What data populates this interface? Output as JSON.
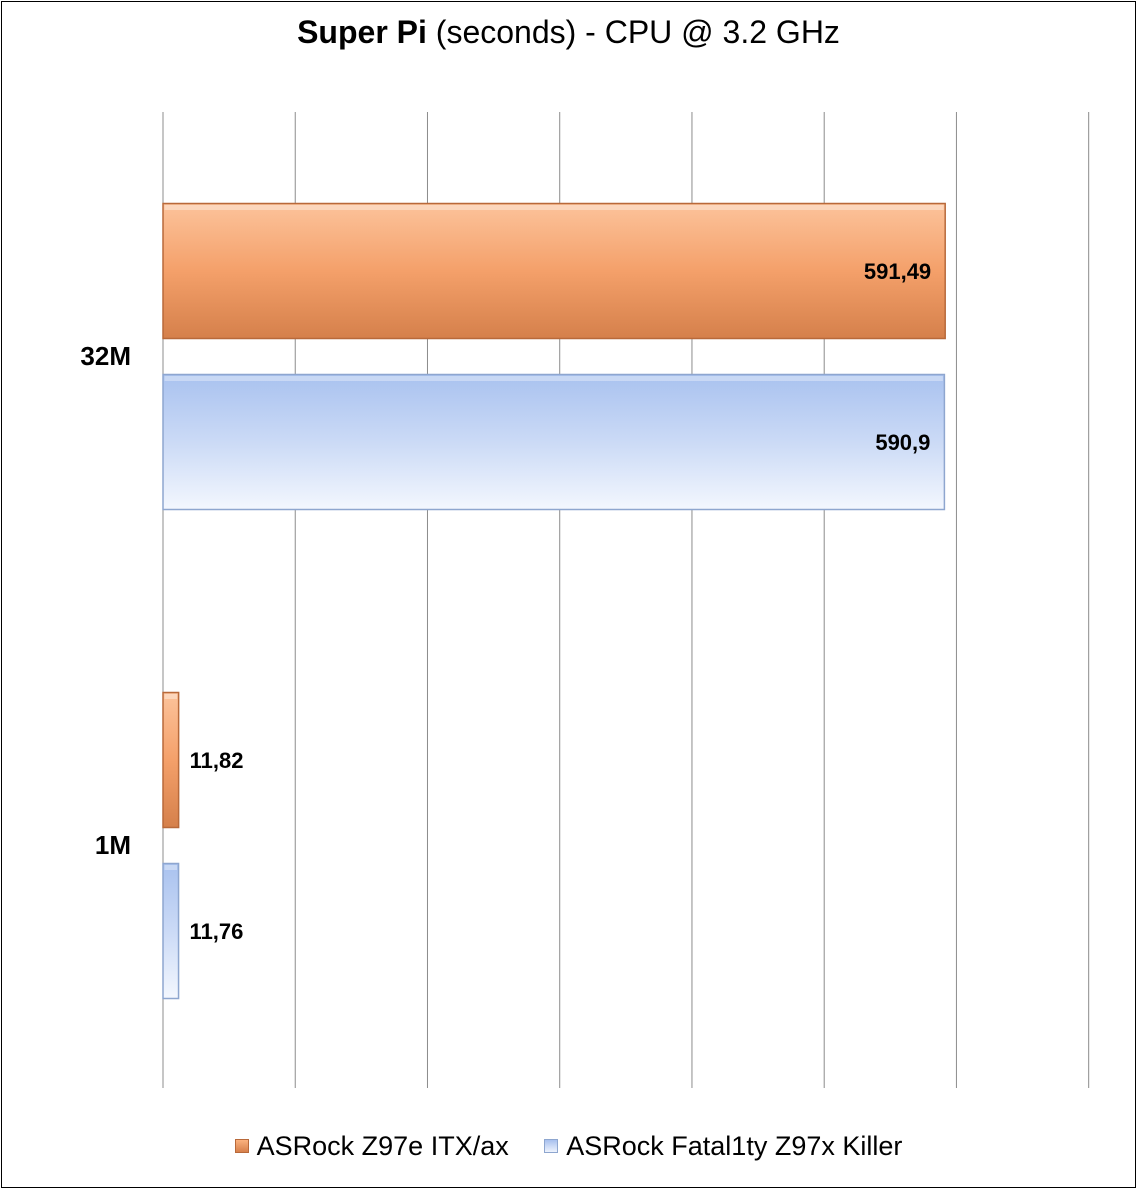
{
  "chart_data": {
    "type": "bar",
    "orientation": "horizontal",
    "title_bold": "Super Pi",
    "title_rest": " (seconds) - CPU @ 3.2 GHz",
    "categories": [
      "32M",
      "1M"
    ],
    "series": [
      {
        "name": "ASRock Z97e ITX/ax",
        "values": [
          591.49,
          11.82
        ],
        "labels": [
          "591,49",
          "11,82"
        ],
        "color": "#f4a06a"
      },
      {
        "name": "ASRock Fatal1ty Z97x Killer",
        "values": [
          590.9,
          11.76
        ],
        "labels": [
          "590,9",
          "11,76"
        ],
        "color": "#b9cdf3"
      }
    ],
    "xlim": [
      0,
      700
    ],
    "grid": true,
    "legend_position": "bottom"
  }
}
